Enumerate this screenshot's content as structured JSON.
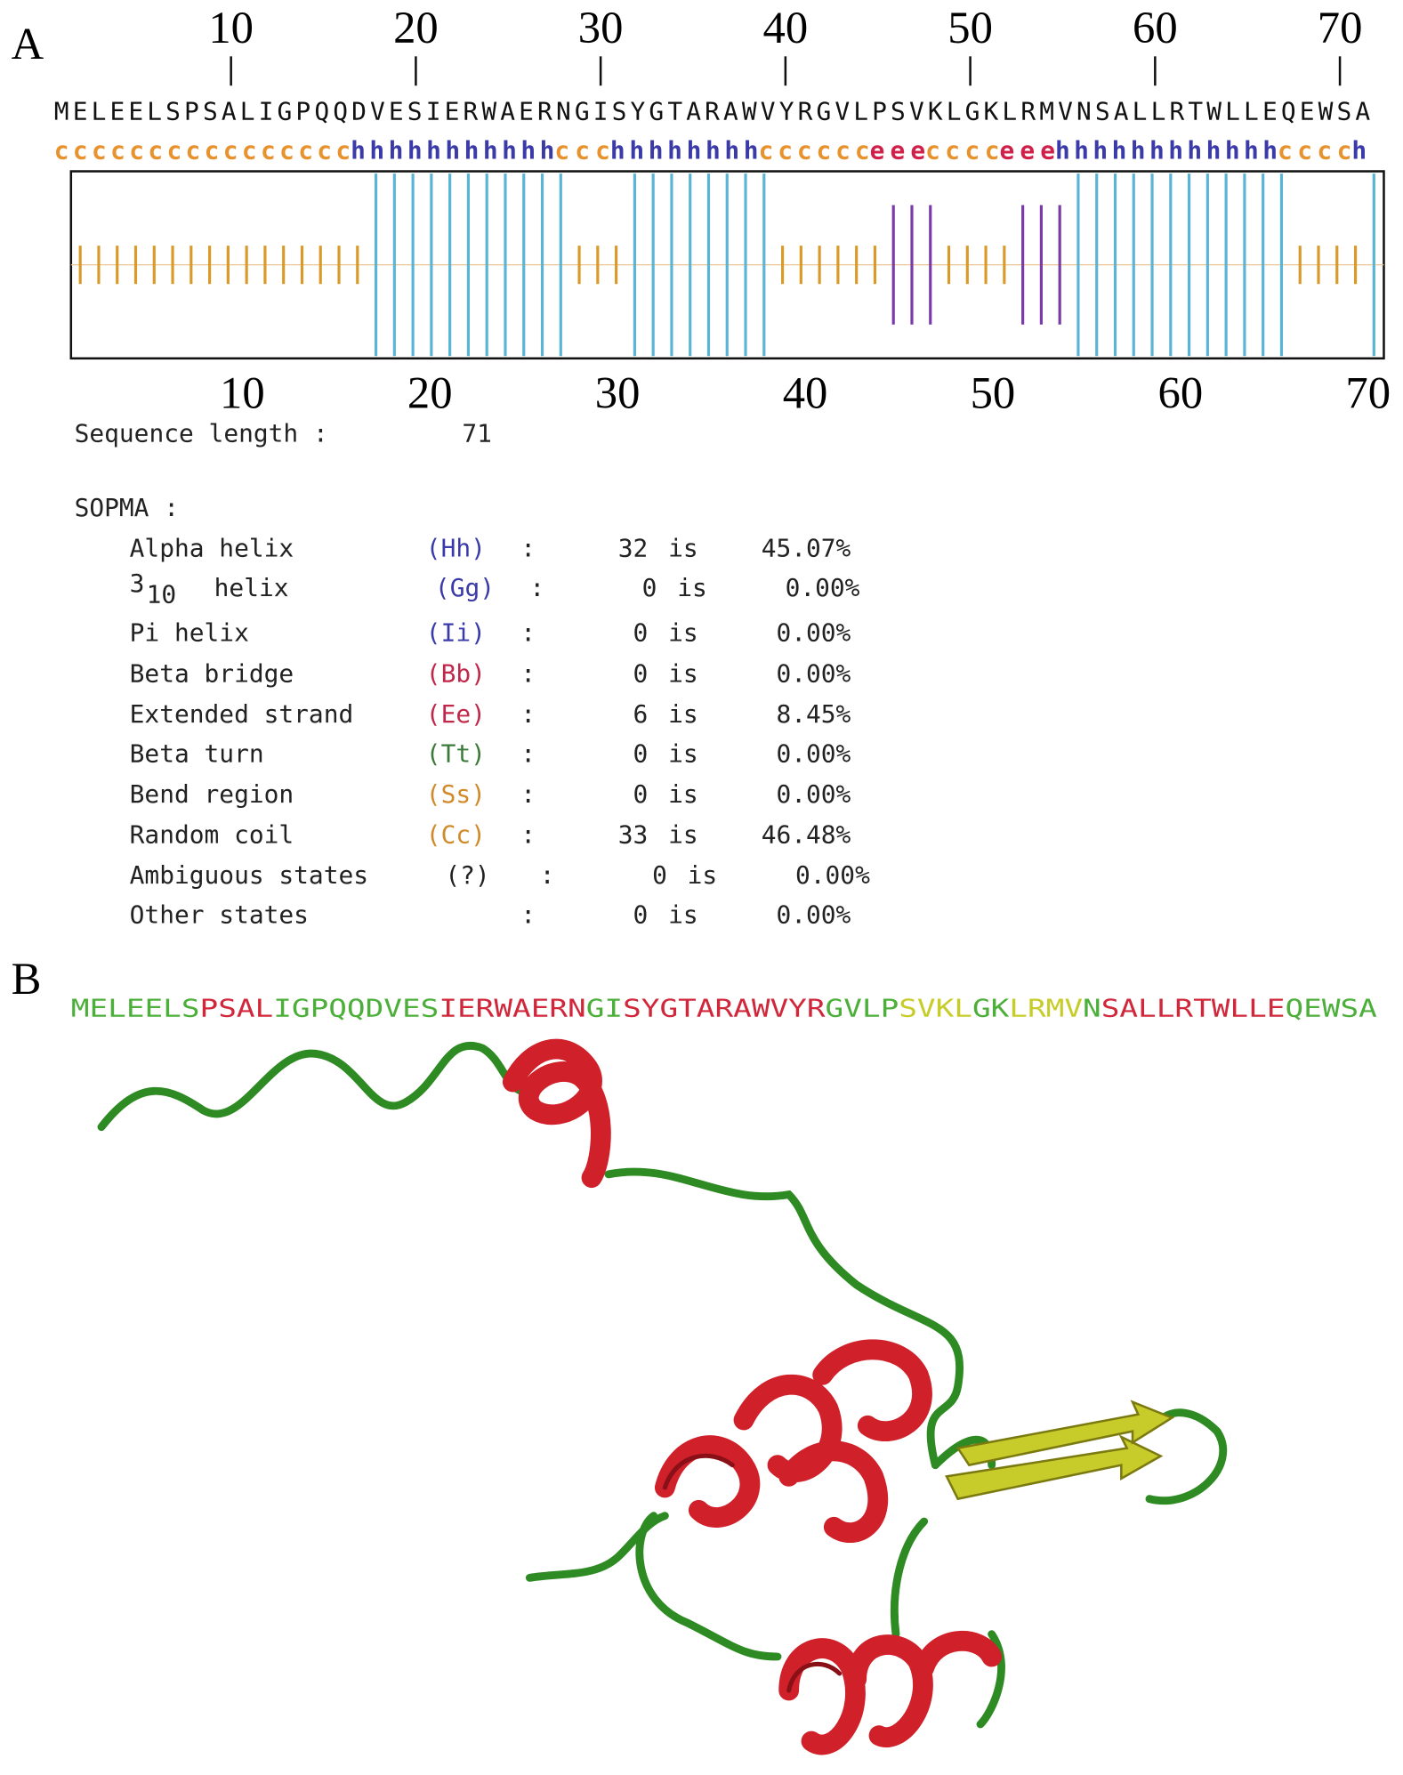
{
  "panel_a": {
    "label": "A",
    "top_ticks": [
      10,
      20,
      30,
      40,
      50,
      60,
      70
    ],
    "sequence": "MELEELSPSALIGPQQDVESIERWAERNGISYGTARAWVYRGVLPSVKLGKLRMVNSALLRTWLLEQEWSA",
    "structure": [
      {
        "text": "cccccccccccccccc",
        "color": "#e8922e"
      },
      {
        "text": "hhhhhhhhhhh",
        "color": "#3a3aa8"
      },
      {
        "text": "ccc",
        "color": "#e8922e"
      },
      {
        "text": "hhhhhhhh",
        "color": "#3a3aa8"
      },
      {
        "text": "cccccc",
        "color": "#e8922e"
      },
      {
        "text": "eee",
        "color": "#d0204a"
      },
      {
        "text": "cccc",
        "color": "#e8922e"
      },
      {
        "text": "eee",
        "color": "#d0204a"
      },
      {
        "text": "hhhhhhhhhhhh",
        "color": "#3a3aa8"
      },
      {
        "text": "cccc",
        "color": "#e8922e"
      },
      {
        "text": "h",
        "color": "#3a3aa8"
      }
    ],
    "plot_colors": {
      "h": "#5ab4d6",
      "c": "#d99a2a",
      "e": "#7a3aa8"
    },
    "bottom_ticks": [
      10,
      20,
      30,
      40,
      50,
      60,
      70
    ],
    "length_label": "Sequence length :",
    "length": 71,
    "method": "SOPMA :",
    "rows": [
      {
        "name": "Alpha helix",
        "code": "(Hh)",
        "code_color": "#3a3aa8",
        "colon": ":",
        "count": 32,
        "is": "is",
        "percent": "45.07%"
      },
      {
        "name": "3",
        "name_sub": "10",
        "name_after": "helix",
        "code": "(Gg)",
        "code_color": "#3a3aa8",
        "colon": ":",
        "count": 0,
        "is": "is",
        "percent": "0.00%"
      },
      {
        "name": "Pi helix",
        "code": "(Ii)",
        "code_color": "#3a3aa8",
        "colon": ":",
        "count": 0,
        "is": "is",
        "percent": "0.00%"
      },
      {
        "name": "Beta bridge",
        "code": "(Bb)",
        "code_color": "#c0284a",
        "colon": ":",
        "count": 0,
        "is": "is",
        "percent": "0.00%"
      },
      {
        "name": "Extended strand",
        "code": "(Ee)",
        "code_color": "#c0284a",
        "colon": ":",
        "count": 6,
        "is": "is",
        "percent": "8.45%"
      },
      {
        "name": "Beta turn",
        "code": "(Tt)",
        "code_color": "#3a7a3a",
        "colon": ":",
        "count": 0,
        "is": "is",
        "percent": "0.00%"
      },
      {
        "name": "Bend region",
        "code": "(Ss)",
        "code_color": "#d08a2a",
        "colon": ":",
        "count": 0,
        "is": "is",
        "percent": "0.00%"
      },
      {
        "name": "Random coil",
        "code": "(Cc)",
        "code_color": "#d08a2a",
        "colon": ":",
        "count": 33,
        "is": "is",
        "percent": "46.48%"
      },
      {
        "name": "Ambiguous states",
        "code": "(?)",
        "code_color": "#222222",
        "colon": ":",
        "count": 0,
        "is": "is",
        "percent": "0.00%"
      },
      {
        "name": "Other states",
        "colon": ":",
        "count": 0,
        "is": "is",
        "percent": "0.00%"
      }
    ]
  },
  "panel_b": {
    "label": "B",
    "sequence": [
      {
        "text": "MELEELS",
        "color": "#4caf3a"
      },
      {
        "text": "PSAL",
        "color": "#d0283a"
      },
      {
        "text": "IGPQQDVES",
        "color": "#4caf3a"
      },
      {
        "text": "IERWAERN",
        "color": "#d0283a"
      },
      {
        "text": "GI",
        "color": "#4caf3a"
      },
      {
        "text": "SYGTARAWVYR",
        "color": "#d0283a"
      },
      {
        "text": "GVLP",
        "color": "#4caf3a"
      },
      {
        "text": "SVKL",
        "color": "#c8cc2a"
      },
      {
        "text": "GK",
        "color": "#4caf3a"
      },
      {
        "text": "LRMV",
        "color": "#c8cc2a"
      },
      {
        "text": "N",
        "color": "#4caf3a"
      },
      {
        "text": "SALLRTWLLE",
        "color": "#d0283a"
      },
      {
        "text": "QEWSA",
        "color": "#4caf3a"
      }
    ]
  }
}
